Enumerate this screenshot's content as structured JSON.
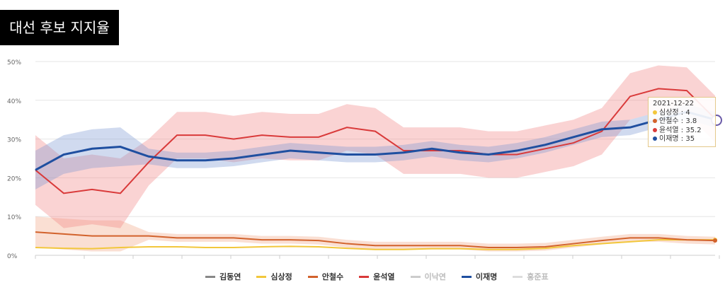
{
  "title": "대선 후보 지지율",
  "chart_data": {
    "type": "line",
    "title": "대선 후보 지지율",
    "ylim": [
      0,
      50
    ],
    "yticks": [
      "0%",
      "10%",
      "20%",
      "30%",
      "40%",
      "50%"
    ],
    "grid": true,
    "legend_position": "bottom",
    "series": [
      {
        "name": "김동연",
        "color": "#888888",
        "values": []
      },
      {
        "name": "심상정",
        "color": "#f2c73c",
        "values": [
          2,
          1.8,
          1.7,
          2,
          2.2,
          2.2,
          2,
          2,
          2.2,
          2.3,
          2.2,
          1.8,
          1.5,
          1.5,
          1.7,
          1.7,
          1.5,
          1.5,
          1.8,
          2.5,
          3,
          3.5,
          4,
          4,
          4
        ]
      },
      {
        "name": "안철수",
        "color": "#d2622c",
        "values": [
          6,
          5.5,
          5,
          5,
          5,
          4.5,
          4.5,
          4.5,
          4,
          4,
          3.8,
          3,
          2.5,
          2.5,
          2.5,
          2.5,
          2,
          2,
          2.2,
          3,
          3.8,
          4.5,
          4.5,
          4,
          3.8
        ]
      },
      {
        "name": "윤석열",
        "color": "#d93a3a",
        "values": [
          22,
          16,
          17,
          16,
          24,
          31,
          31,
          30,
          31,
          30.5,
          30.5,
          33,
          32,
          27,
          27,
          27,
          26,
          26,
          27.5,
          29,
          32,
          41,
          43,
          42.5,
          35.2
        ]
      },
      {
        "name": "이낙연",
        "color": "#cccccc",
        "values": []
      },
      {
        "name": "이재명",
        "color": "#1f4fa0",
        "values": [
          22,
          26,
          27.5,
          28,
          25.5,
          24.5,
          24.5,
          25,
          26,
          27,
          26.5,
          26,
          26,
          26.5,
          27.5,
          26.5,
          26,
          27,
          28.5,
          30.5,
          32.5,
          33,
          35,
          37,
          35
        ]
      },
      {
        "name": "홍준표",
        "color": "#dddddd",
        "values": []
      }
    ],
    "tooltip": {
      "date": "2021-12-22",
      "items": [
        {
          "name": "심상정",
          "value": "4",
          "color": "#f2c73c"
        },
        {
          "name": "안철수",
          "value": "3.8",
          "color": "#d2622c"
        },
        {
          "name": "윤석열",
          "value": "35.2",
          "color": "#d93a3a"
        },
        {
          "name": "이재명",
          "value": "35",
          "color": "#1f4fa0"
        }
      ]
    }
  }
}
